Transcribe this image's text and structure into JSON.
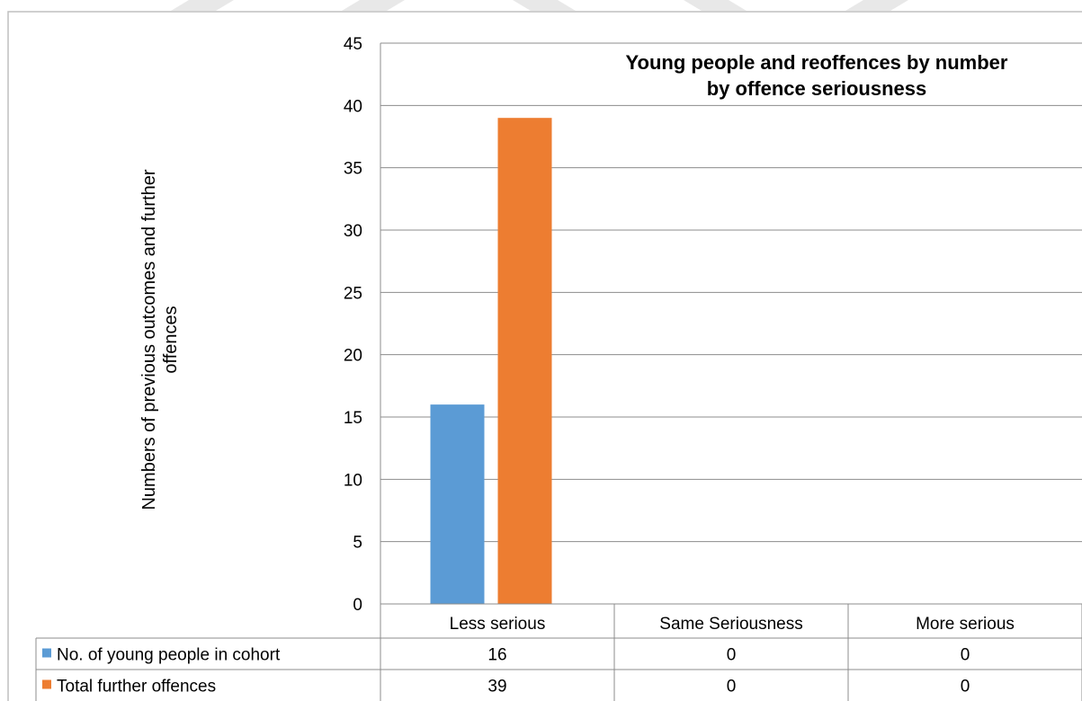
{
  "chart_data": {
    "type": "bar",
    "title_lines": [
      "Young people and reoffences by number",
      "by offence seriousness"
    ],
    "ylabel_lines": [
      "Numbers of previous outcomes and further",
      "offences"
    ],
    "xlabel": "",
    "categories": [
      "Less serious",
      "Same Seriousness",
      "More serious"
    ],
    "series": [
      {
        "name": "No. of young people in cohort",
        "values": [
          16,
          0,
          0
        ],
        "color": "#5b9bd5"
      },
      {
        "name": "Total further offences",
        "values": [
          39,
          0,
          0
        ],
        "color": "#ed7d31"
      }
    ],
    "ylim": [
      0,
      45
    ],
    "yticks": [
      0,
      5,
      10,
      15,
      20,
      25,
      30,
      35,
      40,
      45
    ],
    "grid": true,
    "legend_placement": "data-table"
  }
}
